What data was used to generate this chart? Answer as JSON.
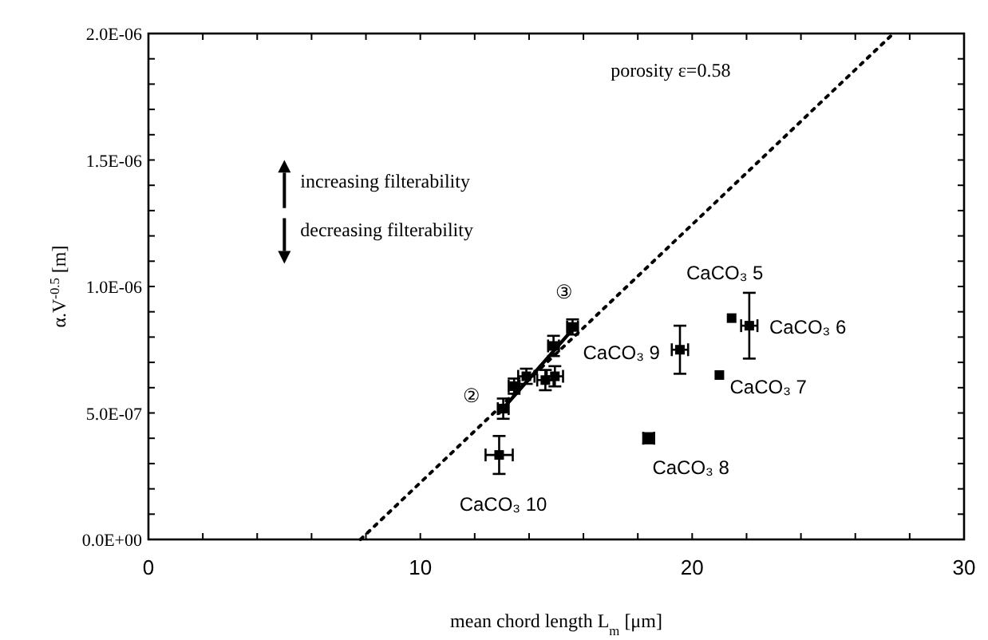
{
  "chart_data": {
    "type": "scatter",
    "xlabel": "mean chord length L$_{m}$ [μm]",
    "ylabel": "α.V$^{-0.5}$ [m]",
    "xlim": [
      0,
      30
    ],
    "ylim": [
      0,
      2e-06
    ],
    "xticks": [
      0,
      {
        "value": 2,
        "label": null
      },
      {
        "value": 4,
        "label": null
      },
      {
        "value": 6,
        "label": null
      },
      {
        "value": 8,
        "label": null
      },
      10,
      {
        "value": 12,
        "label": null
      },
      {
        "value": 14,
        "label": null
      },
      {
        "value": 16,
        "label": null
      },
      {
        "value": 18,
        "label": null
      },
      20,
      {
        "value": 22,
        "label": null
      },
      {
        "value": 24,
        "label": null
      },
      {
        "value": 26,
        "label": null
      },
      {
        "value": 28,
        "label": null
      },
      30
    ],
    "yticks": [
      {
        "value": 0,
        "label": "0.0E+00"
      },
      {
        "value": 1e-07,
        "label": null
      },
      {
        "value": 2e-07,
        "label": null
      },
      {
        "value": 3e-07,
        "label": null
      },
      {
        "value": 4e-07,
        "label": null
      },
      {
        "value": 5e-07,
        "label": "5.0E-07"
      },
      {
        "value": 6e-07,
        "label": null
      },
      {
        "value": 7e-07,
        "label": null
      },
      {
        "value": 8e-07,
        "label": null
      },
      {
        "value": 9e-07,
        "label": null
      },
      {
        "value": 1e-06,
        "label": "1.0E-06"
      },
      {
        "value": 1.1e-06,
        "label": null
      },
      {
        "value": 1.2e-06,
        "label": null
      },
      {
        "value": 1.3e-06,
        "label": null
      },
      {
        "value": 1.4e-06,
        "label": null
      },
      {
        "value": 1.5e-06,
        "label": "1.5E-06"
      },
      {
        "value": 1.6e-06,
        "label": null
      },
      {
        "value": 1.7e-06,
        "label": null
      },
      {
        "value": 1.8e-06,
        "label": null
      },
      {
        "value": 1.9e-06,
        "label": null
      },
      {
        "value": 2e-06,
        "label": "2.0E-06"
      }
    ],
    "grid": false,
    "marker": "square",
    "series": [
      {
        "type": "line",
        "marker": "none",
        "line_style": "dotted",
        "color": "#000000",
        "x": [
          7.8,
          27.4
        ],
        "values": [
          0,
          2e-06
        ]
      },
      {
        "type": "line",
        "marker": "none",
        "line_style": "solid",
        "color": "#000000",
        "x": [
          12.9,
          15.6
        ],
        "values": [
          5e-07,
          8.3e-07
        ]
      },
      {
        "color": "#000000",
        "x": [
          13.05,
          13.45,
          13.9,
          14.6,
          14.95,
          14.9,
          15.6,
          12.9,
          18.4,
          19.55,
          21.0,
          22.1,
          21.45
        ],
        "values": [
          5.17e-07,
          6.06e-07,
          6.45e-07,
          6.3e-07,
          6.45e-07,
          7.65e-07,
          8.4e-07,
          3.34e-07,
          4e-07,
          7.5e-07,
          6.5e-07,
          8.45e-07,
          8.75e-07
        ],
        "errors": [
          4e-08,
          3e-08,
          3e-08,
          4e-08,
          4e-08,
          4e-08,
          3e-08,
          7.5e-08,
          2e-08,
          9.5e-08,
          null,
          1.3e-07,
          null
        ],
        "xerrors": [
          0.2,
          0.2,
          0.3,
          0.3,
          0.3,
          0.2,
          0.2,
          0.5,
          0.2,
          0.3,
          null,
          0.3,
          null
        ]
      }
    ],
    "annotations": [
      "porosity ε=0.58",
      "increasing filterability",
      "decreasing filterability",
      "CaCO₃ 5",
      "CaCO₃ 6",
      "CaCO₃ 7",
      "CaCO₃ 8",
      "CaCO₃ 9",
      "CaCO₃ 10",
      "②",
      "③"
    ]
  }
}
